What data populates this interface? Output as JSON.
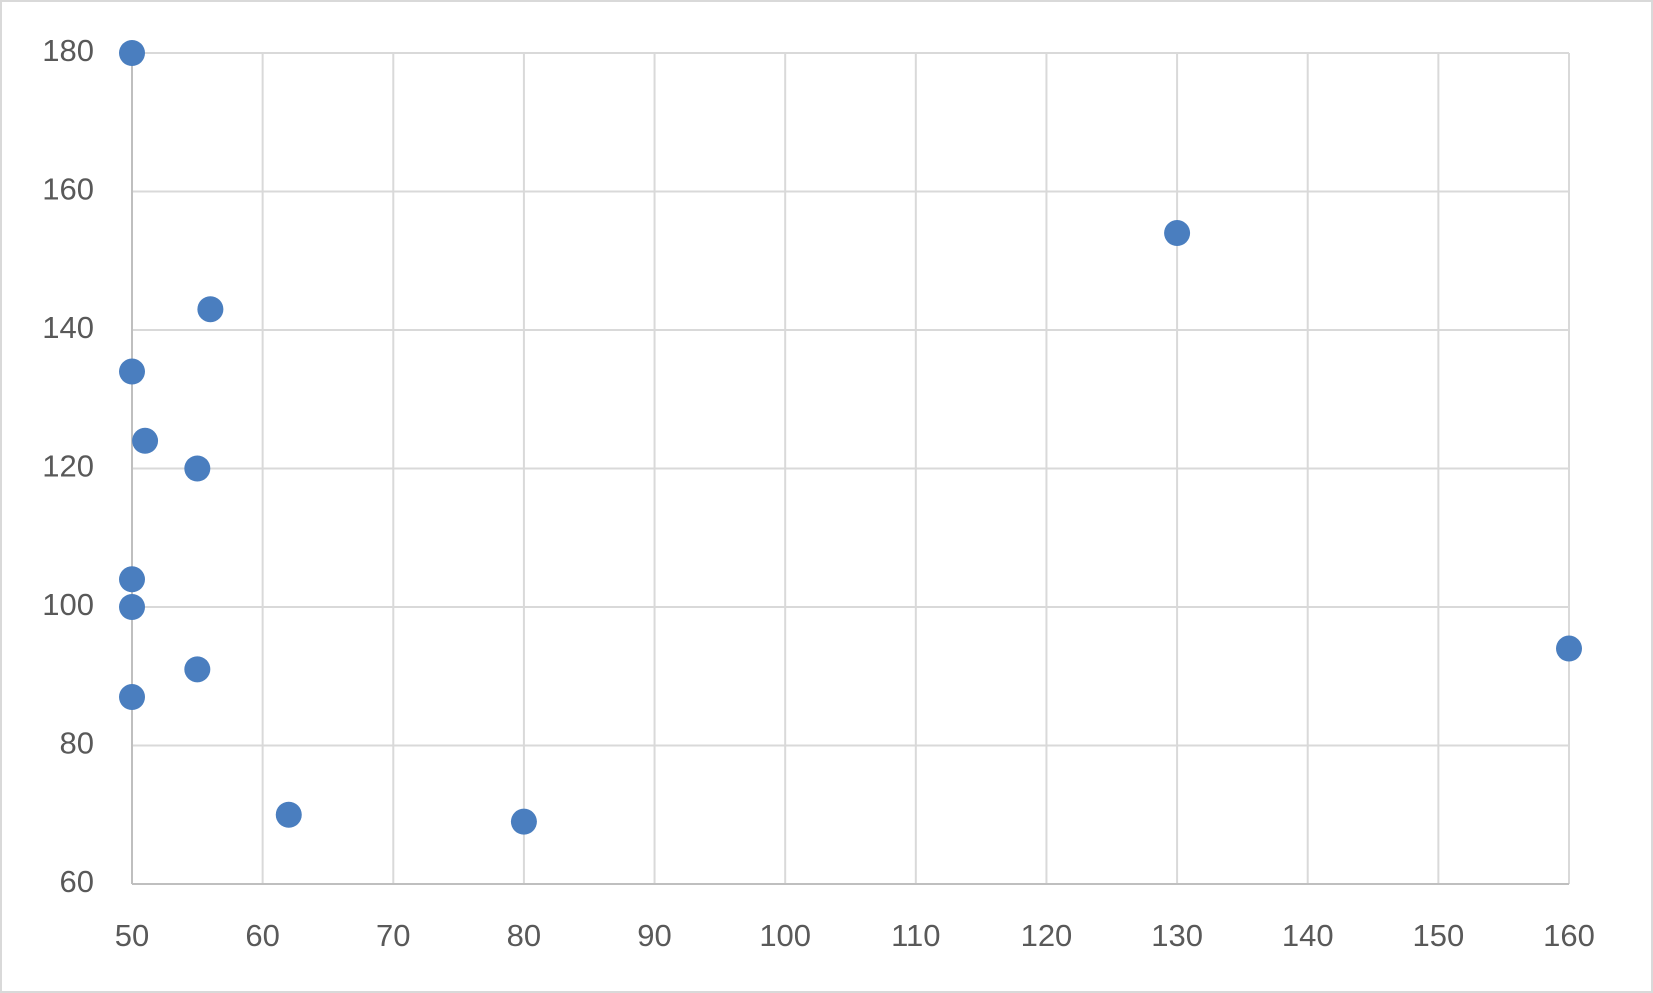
{
  "chart_data": {
    "type": "scatter",
    "x": [
      50,
      56,
      50,
      51,
      55,
      50,
      50,
      55,
      50,
      62,
      80,
      130,
      160
    ],
    "values": [
      180,
      143,
      134,
      124,
      120,
      104,
      100,
      91,
      87,
      70,
      69,
      154,
      94
    ],
    "color": "#4a7ebf",
    "xlim": [
      50,
      160
    ],
    "xticks": [
      50,
      60,
      70,
      80,
      90,
      100,
      110,
      120,
      130,
      140,
      150,
      160
    ],
    "ylim": [
      60,
      180
    ],
    "yticks": [
      60,
      80,
      100,
      120,
      140,
      160,
      180
    ],
    "grid": true
  }
}
